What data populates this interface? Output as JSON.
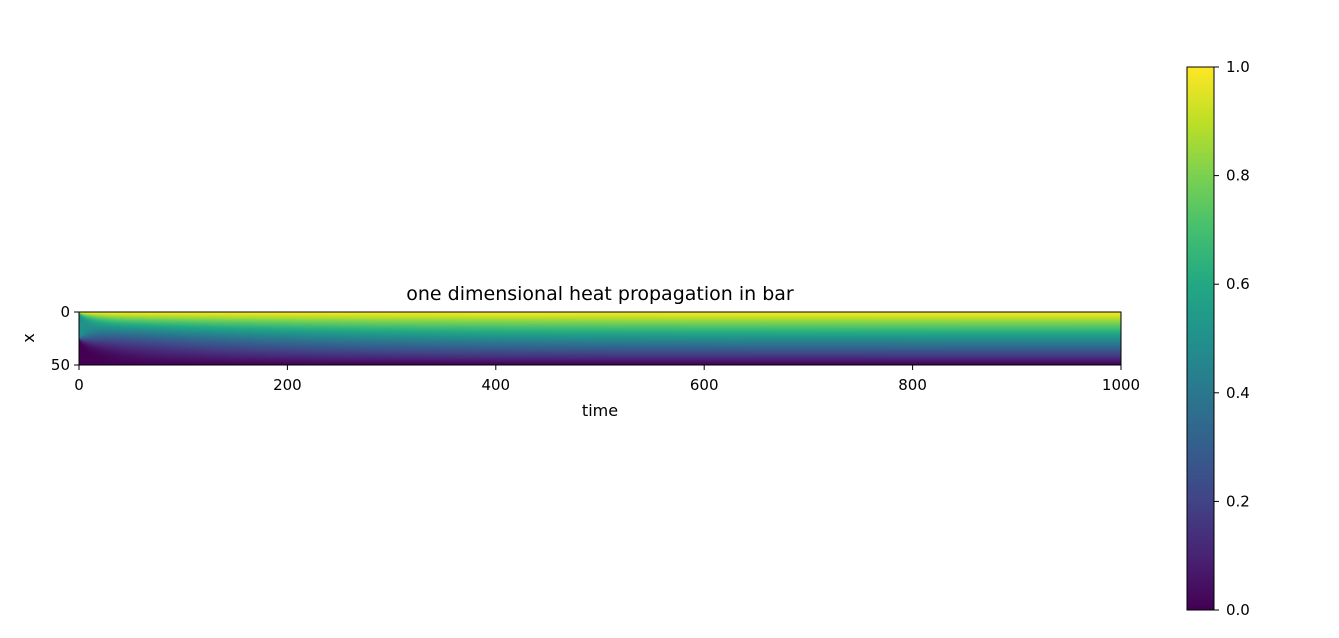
{
  "chart_data": {
    "type": "heatmap",
    "title": "one dimensional heat propagation in bar",
    "xlabel": "time",
    "ylabel": "x",
    "xlim": [
      0,
      1000
    ],
    "ylim": [
      50,
      0
    ],
    "x_ticks": [
      0,
      200,
      400,
      600,
      800,
      1000
    ],
    "y_ticks": [
      0,
      50
    ],
    "grid": false,
    "colormap": "viridis",
    "colorbar": {
      "min": 0.0,
      "max": 1.0,
      "ticks": [
        "0.0",
        "0.2",
        "0.4",
        "0.6",
        "0.8",
        "1.0"
      ]
    },
    "field": {
      "x_range": [
        0,
        50
      ],
      "t_range": [
        0,
        1000
      ],
      "boundary_top_value": 1.0,
      "boundary_bottom_value": 0.0,
      "initial_value_upper_region": 0.5,
      "initial_interface_x": 26
    }
  }
}
